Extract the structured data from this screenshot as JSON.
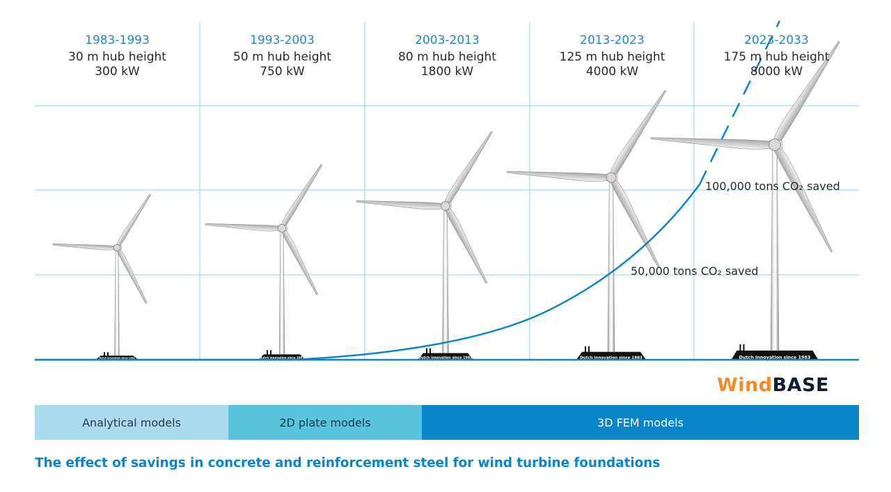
{
  "eras": [
    {
      "years": "1983-1993",
      "hub": "30 m hub height",
      "power": "300 kW"
    },
    {
      "years": "1993-2003",
      "hub": "50 m hub height",
      "power": "750 kW"
    },
    {
      "years": "2003-2013",
      "hub": "80 m hub height",
      "power": "1800 kW"
    },
    {
      "years": "2013-2023",
      "hub": "125 m hub height",
      "power": "4000 kW"
    },
    {
      "years": "2023-2033",
      "hub": "175 m hub height",
      "power": "8000 kW"
    }
  ],
  "turbine_base_label": "Dutch innovation since 1983",
  "annotations": {
    "high": "100,000 tons CO₂ saved",
    "mid": "50,000 tons CO₂ saved"
  },
  "brand": {
    "part1": "Wind",
    "part2": "BASE"
  },
  "model_bands": [
    "Analytical models",
    "2D plate models",
    "3D FEM models"
  ],
  "caption": "The effect of savings in concrete and reinforcement steel for wind turbine foundations",
  "colors": {
    "accent": "#0a86c8",
    "years": "#1f88c7",
    "band_light": "#a9dcec",
    "band_mid": "#5ac3de",
    "band_dark": "#0a86c8",
    "brand_orange": "#f28c28",
    "brand_dark": "#0b1e33",
    "grid": "#8fd0e6"
  }
}
